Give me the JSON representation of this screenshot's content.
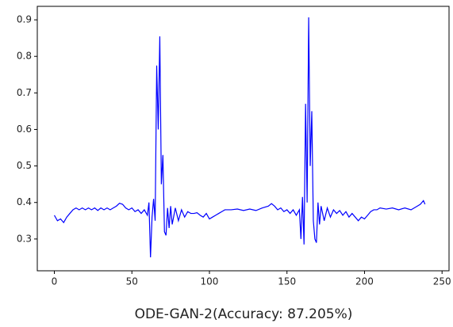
{
  "chart_data": {
    "type": "line",
    "title": "ODE-GAN-2(Accuracy: 87.205%)",
    "color": "#0000ff",
    "x": [
      0,
      2,
      4,
      6,
      8,
      10,
      12,
      14,
      16,
      18,
      20,
      22,
      24,
      26,
      28,
      30,
      32,
      34,
      36,
      38,
      40,
      42,
      44,
      46,
      48,
      50,
      52,
      54,
      56,
      58,
      60,
      61,
      62,
      63,
      64,
      65,
      66,
      67,
      68,
      69,
      70,
      71,
      72,
      73,
      74,
      75,
      76,
      78,
      80,
      82,
      84,
      86,
      88,
      90,
      92,
      94,
      96,
      98,
      100,
      102,
      104,
      106,
      108,
      110,
      114,
      118,
      122,
      126,
      130,
      134,
      138,
      140,
      142,
      144,
      146,
      148,
      150,
      152,
      154,
      156,
      158,
      159,
      160,
      161,
      162,
      163,
      164,
      165,
      166,
      167,
      168,
      169,
      170,
      171,
      172,
      174,
      176,
      178,
      180,
      182,
      184,
      186,
      188,
      190,
      192,
      194,
      196,
      198,
      200,
      202,
      204,
      206,
      208,
      210,
      214,
      218,
      222,
      226,
      230,
      234,
      236,
      238,
      239
    ],
    "values": [
      0.365,
      0.35,
      0.355,
      0.345,
      0.36,
      0.37,
      0.38,
      0.385,
      0.38,
      0.385,
      0.38,
      0.385,
      0.38,
      0.385,
      0.378,
      0.385,
      0.38,
      0.385,
      0.38,
      0.385,
      0.39,
      0.398,
      0.395,
      0.385,
      0.38,
      0.385,
      0.375,
      0.38,
      0.37,
      0.38,
      0.365,
      0.4,
      0.25,
      0.36,
      0.41,
      0.35,
      0.775,
      0.6,
      0.855,
      0.45,
      0.53,
      0.32,
      0.31,
      0.385,
      0.33,
      0.39,
      0.34,
      0.385,
      0.35,
      0.38,
      0.36,
      0.375,
      0.37,
      0.37,
      0.372,
      0.365,
      0.36,
      0.37,
      0.355,
      0.36,
      0.365,
      0.37,
      0.375,
      0.38,
      0.38,
      0.382,
      0.378,
      0.382,
      0.378,
      0.385,
      0.39,
      0.397,
      0.39,
      0.38,
      0.385,
      0.375,
      0.38,
      0.37,
      0.38,
      0.365,
      0.38,
      0.3,
      0.415,
      0.285,
      0.67,
      0.4,
      0.907,
      0.5,
      0.65,
      0.35,
      0.3,
      0.29,
      0.4,
      0.34,
      0.39,
      0.35,
      0.385,
      0.36,
      0.38,
      0.37,
      0.378,
      0.365,
      0.375,
      0.36,
      0.37,
      0.36,
      0.35,
      0.36,
      0.355,
      0.365,
      0.375,
      0.38,
      0.38,
      0.385,
      0.382,
      0.385,
      0.38,
      0.385,
      0.38,
      0.39,
      0.395,
      0.405,
      0.395
    ],
    "xlim": [
      -11,
      254.5
    ],
    "xticks": [
      0,
      50,
      100,
      150,
      200,
      250
    ],
    "ylim": [
      0.213,
      0.937
    ],
    "yticks": [
      0.3,
      0.4,
      0.5,
      0.6,
      0.7,
      0.8,
      0.9
    ]
  }
}
